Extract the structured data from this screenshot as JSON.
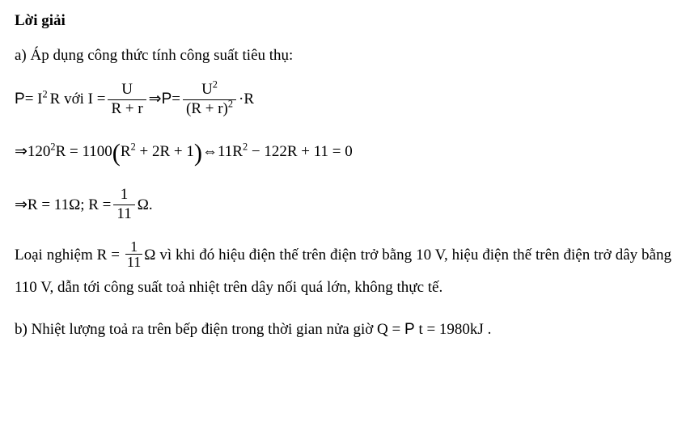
{
  "heading": "Lời giải",
  "line_a": "a) Áp dụng công thức tính công suất tiêu thụ:",
  "eq1": {
    "p_label": "P",
    "eq_i2r": " = I",
    "sup2": "2",
    "r_with": "R với I =",
    "frac1_num": "U",
    "frac1_den": "R + r",
    "arrow_p": " ⇒ ",
    "p_label2": "P",
    "eq2": "  =",
    "frac2_num_u": "U",
    "frac2_num_sup": "2",
    "frac2_den_pre": "(R + r)",
    "frac2_den_sup": "2",
    "dot_r": "·R"
  },
  "eq2": {
    "arrow": "⇒ ",
    "lhs_120": "120",
    "sup2a": "2",
    "lhs_r": "R = 1100",
    "paren_l": "(",
    "inside_r": "R",
    "sup2b": "2",
    "inside_rest": " + 2R + 1",
    "paren_r": ")",
    "iff": " ⇔ ",
    "rhs_11r": "11R",
    "sup2c": "2",
    "rhs_rest": " − 122R + 11 = 0"
  },
  "eq3": {
    "arrow": "⇒ ",
    "r_11": "R = 11Ω; R =",
    "frac_num": "1",
    "frac_den": "11",
    "omega_dot": "Ω."
  },
  "para_reject_1": "Loại nghiệm R =",
  "para_reject_frac_num": "1",
  "para_reject_frac_den": "11",
  "para_reject_2": "Ω vì khi đó hiệu điện thế trên điện trở bằng 10 V, hiệu điện thế trên điện trở dây bằng 110 V, dẫn tới công suất toả nhiệt trên dây nối quá lớn, không thực tế.",
  "line_b_1": "b) Nhiệt lượng toả ra trên bếp điện trong thời gian nửa giờ Q = ",
  "line_b_p": "P",
  "line_b_2": "  t = 1980kJ ."
}
